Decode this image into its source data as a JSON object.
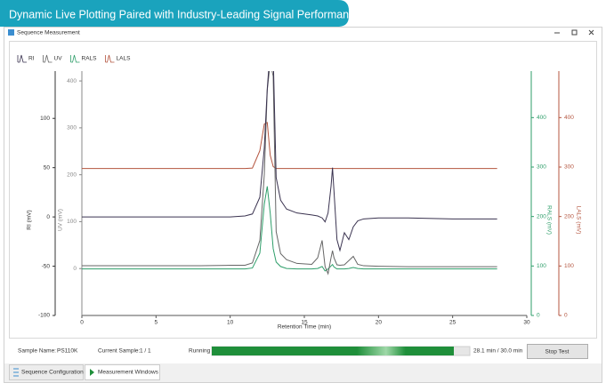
{
  "banner": {
    "title": "Dynamic Live Plotting Paired with Industry-Leading Signal Performance"
  },
  "window": {
    "title": "Sequence Measurement"
  },
  "chart_data": {
    "type": "line",
    "xlabel": "Retention Time (min)",
    "x": [
      0,
      2,
      4,
      6,
      8,
      10,
      11,
      11.5,
      12,
      12.3,
      12.5,
      12.7,
      12.9,
      13.1,
      13.4,
      13.8,
      14.5,
      15.5,
      15.9,
      16.2,
      16.4,
      16.6,
      16.8,
      16.9,
      17.0,
      17.2,
      17.4,
      17.7,
      18.0,
      18.3,
      18.6,
      19,
      20,
      22,
      25,
      28
    ],
    "xlim": [
      0,
      30
    ],
    "xticks": [
      0,
      5,
      10,
      15,
      20,
      25,
      30
    ],
    "ylabel": "RI (mV)",
    "ylim": [
      -100,
      148
    ],
    "yticks": [
      -100,
      -50,
      0,
      50,
      100
    ],
    "ycolor": "#333333",
    "y2label": "UV (mV)",
    "y2lim": [
      -100,
      421
    ],
    "y2ticks": [
      0,
      100,
      200,
      300,
      400
    ],
    "y2color": "#888888",
    "y3label": "RALS (mV)",
    "y3lim": [
      0,
      494
    ],
    "y3ticks": [
      0,
      100,
      200,
      300,
      400
    ],
    "y3color": "#2e9e6a",
    "y4label": "LALS (mV)",
    "y4lim": [
      0,
      494
    ],
    "y4ticks": [
      0,
      100,
      200,
      300,
      400
    ],
    "y4color": "#b4553f",
    "legend": "top-left",
    "series": [
      {
        "name": "RI",
        "color": "#3a3350",
        "axis": "y",
        "values": [
          0,
          0,
          0,
          0,
          0,
          0,
          1,
          3,
          20,
          70,
          130,
          170,
          165,
          40,
          17,
          8,
          4,
          2,
          1,
          -1,
          -5,
          4,
          31,
          50,
          26,
          -23,
          -34,
          -16,
          -23,
          -10,
          -4,
          -2,
          -1,
          -1,
          -2,
          -2
        ]
      },
      {
        "name": "UV",
        "color": "#666666",
        "axis": "y2",
        "values": [
          6,
          6,
          6,
          6,
          6,
          7,
          7,
          12,
          60,
          200,
          380,
          440,
          410,
          79,
          32,
          19,
          11,
          9,
          23,
          60,
          4,
          -11,
          23,
          38,
          23,
          8,
          7,
          8,
          17,
          26,
          9,
          6,
          5,
          4,
          4,
          4
        ]
      },
      {
        "name": "RALS",
        "color": "#2e9e6a",
        "axis": "y3",
        "values": [
          94,
          94,
          94,
          94,
          94,
          94,
          94,
          96,
          126,
          225,
          261,
          207,
          135,
          108,
          99,
          95,
          94,
          94,
          95,
          99,
          90,
          94,
          100,
          103,
          98,
          94,
          94,
          94,
          95,
          97,
          95,
          94,
          94,
          94,
          94,
          94
        ]
      },
      {
        "name": "LALS",
        "color": "#b4553f",
        "axis": "y4",
        "values": [
          297,
          297,
          297,
          297,
          297,
          297,
          297,
          298,
          333,
          387,
          390,
          324,
          301,
          297,
          297,
          297,
          297,
          297,
          297,
          297,
          297,
          297,
          297,
          297,
          297,
          297,
          297,
          297,
          297,
          297,
          297,
          297,
          297,
          297,
          297,
          297
        ]
      }
    ]
  },
  "status": {
    "sample_name_label": "Sample Name:",
    "sample_name": "PS110K",
    "current_sample_label": "Current Sample:",
    "current_sample": "1 / 1",
    "state": "Running",
    "progress": "28.1 min / 30.0 min",
    "stop_button": "Stop Test"
  },
  "tabs": [
    "Sequence Configuration",
    "Measurement Windows"
  ]
}
